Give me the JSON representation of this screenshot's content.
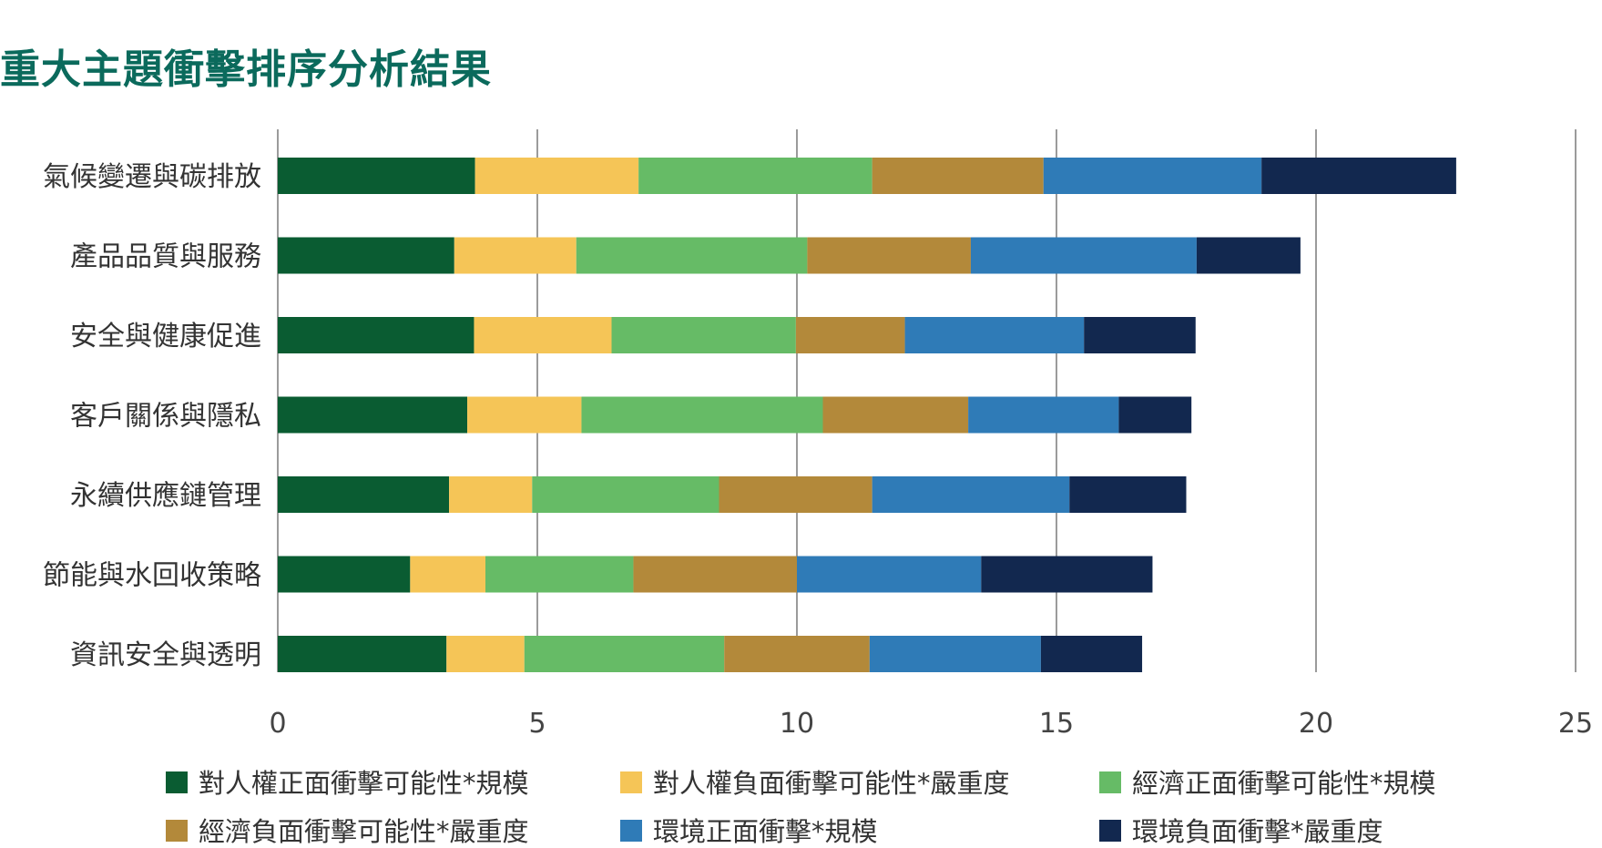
{
  "chart_data": {
    "type": "bar",
    "orientation": "horizontal",
    "stacked": true,
    "title": "重大主題衝擊排序分析結果",
    "xlabel": "",
    "ylabel": "",
    "xlim": [
      0,
      25
    ],
    "xticks": [
      0,
      5,
      10,
      15,
      20,
      25
    ],
    "grid": true,
    "legend_position": "bottom",
    "categories": [
      "氣候變遷與碳排放",
      "產品品質與服務",
      "安全與健康促進",
      "客戶關係與隱私",
      "永續供應鏈管理",
      "節能與水回收策略",
      "資訊安全與透明"
    ],
    "series": [
      {
        "name": "對人權正面衝擊可能性*規模",
        "color": "#0a5c32",
        "values": [
          3.8,
          3.4,
          3.78,
          3.65,
          3.3,
          2.55,
          3.25
        ]
      },
      {
        "name": "對人權負面衝擊可能性*嚴重度",
        "color": "#f5c557",
        "values": [
          3.15,
          2.35,
          2.65,
          2.2,
          1.6,
          1.45,
          1.5
        ]
      },
      {
        "name": "經濟正面衝擊可能性*規模",
        "color": "#66bb66",
        "values": [
          4.5,
          4.45,
          3.55,
          4.65,
          3.6,
          2.85,
          3.85
        ]
      },
      {
        "name": "經濟負面衝擊可能性*嚴重度",
        "color": "#b3893a",
        "values": [
          3.3,
          3.15,
          2.1,
          2.8,
          2.95,
          3.15,
          2.8
        ]
      },
      {
        "name": "環境正面衝擊*規模",
        "color": "#2f7bb7",
        "values": [
          4.2,
          4.35,
          3.45,
          2.9,
          3.8,
          3.55,
          3.3
        ]
      },
      {
        "name": "環境負面衝擊*嚴重度",
        "color": "#12284f",
        "values": [
          3.75,
          2.0,
          2.15,
          1.4,
          2.25,
          3.3,
          1.95
        ]
      }
    ]
  }
}
